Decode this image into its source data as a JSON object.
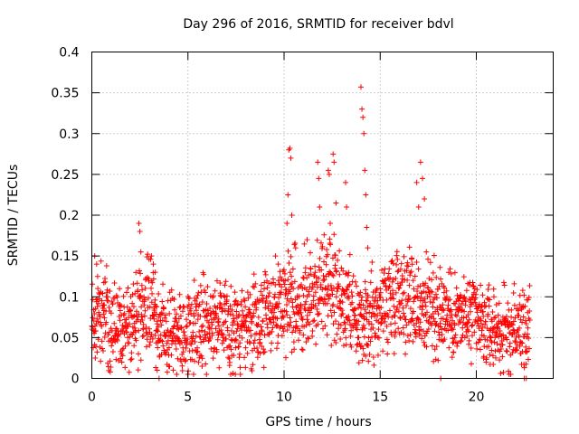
{
  "chart_data": {
    "type": "scatter",
    "title": "Day 296 of 2016, SRMTID for receiver bdvl",
    "xlabel": "GPS time / hours",
    "ylabel": "SRMTID / TECUs",
    "xlim": [
      0,
      24
    ],
    "ylim": [
      0,
      0.4
    ],
    "xticks": [
      0,
      5,
      10,
      15,
      20
    ],
    "xtick_labels": [
      "0",
      "5",
      "10",
      "15",
      "20"
    ],
    "yticks": [
      0,
      0.05,
      0.1,
      0.15,
      0.2,
      0.25,
      0.3,
      0.35,
      0.4
    ],
    "ytick_labels": [
      "0",
      "0.05",
      "0.1",
      "0.15",
      "0.2",
      "0.25",
      "0.3",
      "0.35",
      "0.4"
    ],
    "grid": true,
    "marker": "+",
    "color": "#ff0000",
    "trend": {
      "x": [
        0,
        0.5,
        1,
        1.5,
        2,
        2.5,
        3,
        3.5,
        4,
        4.5,
        5,
        5.5,
        6,
        6.5,
        7,
        7.5,
        8,
        8.5,
        9,
        9.5,
        10,
        10.5,
        11,
        11.5,
        12,
        12.5,
        13,
        13.5,
        14,
        14.5,
        15,
        15.5,
        16,
        16.5,
        17,
        17.5,
        18,
        18.5,
        19,
        19.5,
        20,
        20.5,
        21,
        21.5,
        22,
        22.5,
        22.8
      ],
      "y": [
        0.08,
        0.085,
        0.065,
        0.06,
        0.07,
        0.08,
        0.09,
        0.06,
        0.065,
        0.06,
        0.06,
        0.065,
        0.075,
        0.07,
        0.06,
        0.06,
        0.06,
        0.065,
        0.075,
        0.085,
        0.1,
        0.1,
        0.085,
        0.1,
        0.11,
        0.11,
        0.09,
        0.075,
        0.06,
        0.075,
        0.085,
        0.1,
        0.11,
        0.1,
        0.09,
        0.085,
        0.085,
        0.08,
        0.075,
        0.075,
        0.07,
        0.06,
        0.06,
        0.055,
        0.06,
        0.06,
        0.065
      ]
    },
    "spikes": [
      {
        "x": 0.15,
        "y": 0.15
      },
      {
        "x": 0.25,
        "y": 0.14
      },
      {
        "x": 0.3,
        "y": 0.125
      },
      {
        "x": 2.45,
        "y": 0.19
      },
      {
        "x": 2.5,
        "y": 0.18
      },
      {
        "x": 2.55,
        "y": 0.155
      },
      {
        "x": 3.1,
        "y": 0.15
      },
      {
        "x": 3.2,
        "y": 0.14
      },
      {
        "x": 3.3,
        "y": 0.13
      },
      {
        "x": 9.55,
        "y": 0.15
      },
      {
        "x": 9.7,
        "y": 0.14
      },
      {
        "x": 10.15,
        "y": 0.19
      },
      {
        "x": 10.2,
        "y": 0.225
      },
      {
        "x": 10.25,
        "y": 0.28
      },
      {
        "x": 10.3,
        "y": 0.282
      },
      {
        "x": 10.35,
        "y": 0.27
      },
      {
        "x": 10.4,
        "y": 0.2
      },
      {
        "x": 10.6,
        "y": 0.16
      },
      {
        "x": 11.2,
        "y": 0.17
      },
      {
        "x": 11.75,
        "y": 0.265
      },
      {
        "x": 11.8,
        "y": 0.245
      },
      {
        "x": 11.85,
        "y": 0.21
      },
      {
        "x": 12.3,
        "y": 0.255
      },
      {
        "x": 12.35,
        "y": 0.25
      },
      {
        "x": 12.4,
        "y": 0.19
      },
      {
        "x": 12.55,
        "y": 0.275
      },
      {
        "x": 12.6,
        "y": 0.265
      },
      {
        "x": 12.7,
        "y": 0.215
      },
      {
        "x": 13.2,
        "y": 0.24
      },
      {
        "x": 13.25,
        "y": 0.21
      },
      {
        "x": 14.0,
        "y": 0.357
      },
      {
        "x": 14.05,
        "y": 0.33
      },
      {
        "x": 14.1,
        "y": 0.32
      },
      {
        "x": 14.15,
        "y": 0.3
      },
      {
        "x": 14.2,
        "y": 0.255
      },
      {
        "x": 14.25,
        "y": 0.225
      },
      {
        "x": 14.3,
        "y": 0.185
      },
      {
        "x": 14.35,
        "y": 0.16
      },
      {
        "x": 16.9,
        "y": 0.24
      },
      {
        "x": 17.0,
        "y": 0.21
      },
      {
        "x": 17.1,
        "y": 0.265
      },
      {
        "x": 17.2,
        "y": 0.245
      },
      {
        "x": 17.3,
        "y": 0.22
      },
      {
        "x": 17.4,
        "y": 0.155
      },
      {
        "x": 18.15,
        "y": 0.0
      },
      {
        "x": 22.5,
        "y": 0.0
      },
      {
        "x": 22.6,
        "y": 0.0
      },
      {
        "x": 3.5,
        "y": 0.0
      },
      {
        "x": 3.4,
        "y": 0.01
      }
    ]
  }
}
